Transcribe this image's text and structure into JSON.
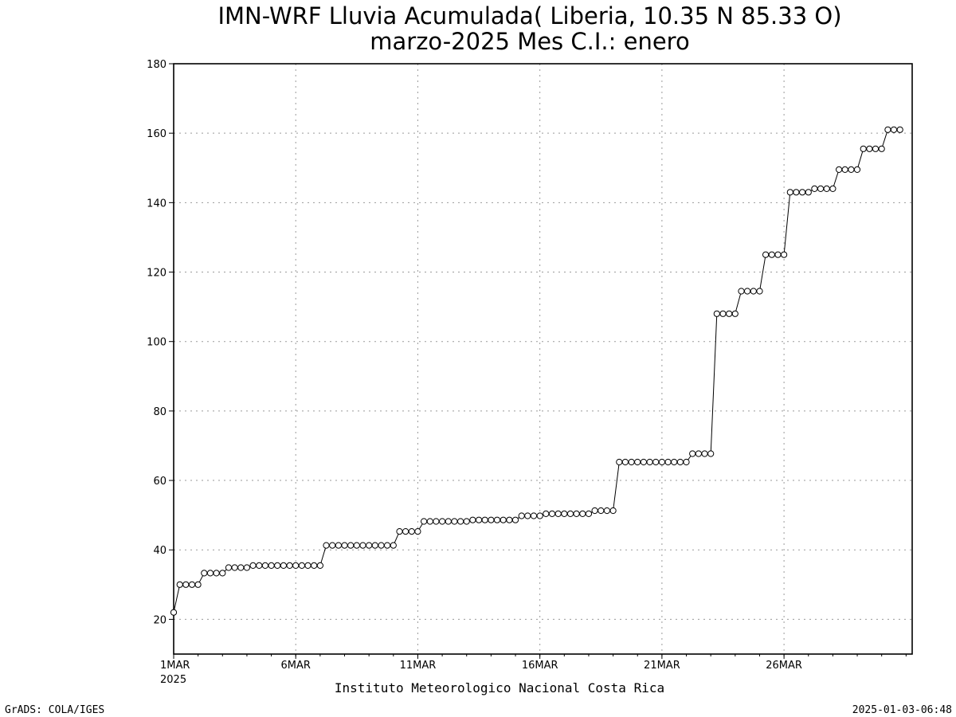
{
  "chart_data": {
    "type": "line",
    "title": "IMN-WRF  Lluvia Acumulada( Liberia, 10.35  N 85.33  O)",
    "subtitle": "marzo-2025 Mes C.I.: enero",
    "xlabel": "Instituto Meteorologico Nacional Costa Rica",
    "ylabel": "",
    "ylim": [
      10,
      180
    ],
    "xlim": [
      0,
      30.25
    ],
    "grid": true,
    "y_ticks": [
      20,
      40,
      60,
      80,
      100,
      120,
      140,
      160,
      180
    ],
    "x_ticks": [
      {
        "x": 0,
        "label": "1MAR",
        "sublabel": "2025"
      },
      {
        "x": 5,
        "label": "6MAR",
        "sublabel": ""
      },
      {
        "x": 10,
        "label": "11MAR",
        "sublabel": ""
      },
      {
        "x": 15,
        "label": "16MAR",
        "sublabel": ""
      },
      {
        "x": 20,
        "label": "21MAR",
        "sublabel": ""
      },
      {
        "x": 25,
        "label": "26MAR",
        "sublabel": ""
      }
    ],
    "x_step_days": 0.25,
    "series": [
      {
        "values": [
          22,
          30,
          30,
          30,
          30,
          33.3,
          33.3,
          33.3,
          33.3,
          34.9,
          34.9,
          34.9,
          34.9,
          35.5,
          35.5,
          35.5,
          35.5,
          35.5,
          35.5,
          35.5,
          35.5,
          35.5,
          35.5,
          35.5,
          35.5,
          41.3,
          41.3,
          41.3,
          41.3,
          41.3,
          41.3,
          41.3,
          41.3,
          41.3,
          41.3,
          41.3,
          41.3,
          45.3,
          45.3,
          45.3,
          45.3,
          48.2,
          48.2,
          48.2,
          48.2,
          48.2,
          48.2,
          48.2,
          48.2,
          48.6,
          48.6,
          48.6,
          48.6,
          48.6,
          48.6,
          48.6,
          48.6,
          49.8,
          49.8,
          49.8,
          49.8,
          50.4,
          50.4,
          50.4,
          50.4,
          50.4,
          50.4,
          50.4,
          50.4,
          51.3,
          51.3,
          51.3,
          51.3,
          65.3,
          65.3,
          65.3,
          65.3,
          65.3,
          65.3,
          65.3,
          65.3,
          65.3,
          65.3,
          65.3,
          65.3,
          67.7,
          67.7,
          67.7,
          67.7,
          108,
          108,
          108,
          108,
          114.5,
          114.5,
          114.5,
          114.5,
          125,
          125,
          125,
          125,
          143,
          143,
          143,
          143,
          144,
          144,
          144,
          144,
          149.5,
          149.5,
          149.5,
          149.5,
          155.5,
          155.5,
          155.5,
          155.5,
          161,
          161,
          161
        ]
      }
    ]
  },
  "footer": {
    "left": "GrADS: COLA/IGES",
    "right": "2025-01-03-06:48"
  }
}
